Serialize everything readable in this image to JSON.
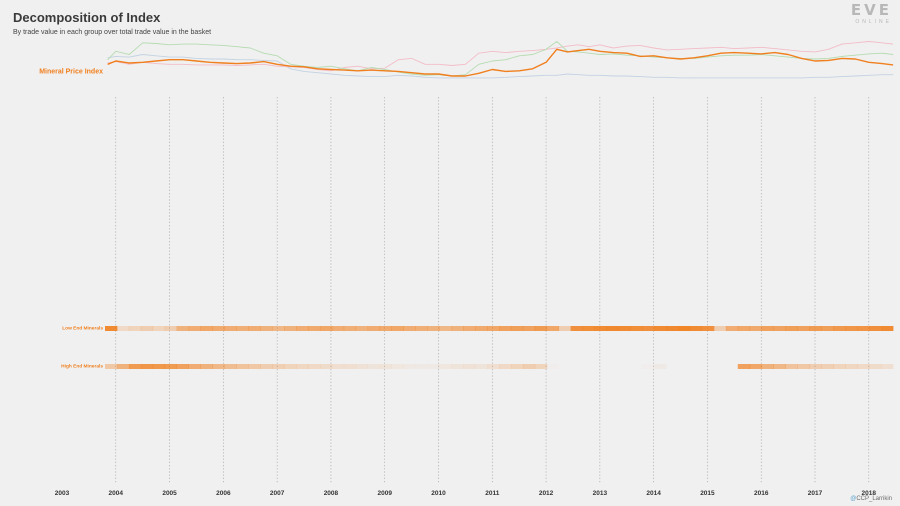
{
  "header": {
    "title": "Decomposition of Index",
    "subtitle": "By trade value in each group over total trade value in the basket"
  },
  "logo": {
    "mark": "EVE",
    "sub": "ONLINE"
  },
  "credit": {
    "prefix": "@",
    "handle": "CCP_Larrikin"
  },
  "colors": {
    "background": "#f0f0f0",
    "index_line": "#f07f1e",
    "heat": "#f07f1e",
    "green_series": "#b5dbb0",
    "pink_series": "#f3bcc8",
    "blue_series": "#c3d2e3",
    "grid": "#9a9a9a"
  },
  "chart_data": {
    "type": "line",
    "title": "Decomposition of Index",
    "subtitle": "By trade value in each group over total trade value in the basket",
    "x_ticks": [
      "2003",
      "2004",
      "2005",
      "2006",
      "2007",
      "2008",
      "2009",
      "2010",
      "2011",
      "2012",
      "2013",
      "2014",
      "2015",
      "2016",
      "2017",
      "2018"
    ],
    "x_domain": [
      2003.0,
      2018.45
    ],
    "y_domain": [
      0,
      100
    ],
    "x": [
      2003.85,
      2004.0,
      2004.25,
      2004.5,
      2004.75,
      2005.0,
      2005.25,
      2005.5,
      2005.75,
      2006.0,
      2006.25,
      2006.5,
      2006.75,
      2007.0,
      2007.25,
      2007.5,
      2007.75,
      2008.0,
      2008.25,
      2008.5,
      2008.75,
      2009.0,
      2009.25,
      2009.5,
      2009.75,
      2010.0,
      2010.25,
      2010.5,
      2010.75,
      2011.0,
      2011.25,
      2011.5,
      2011.75,
      2012.0,
      2012.2,
      2012.4,
      2012.6,
      2012.8,
      2013.0,
      2013.25,
      2013.5,
      2013.75,
      2014.0,
      2014.25,
      2014.5,
      2014.75,
      2015.0,
      2015.25,
      2015.5,
      2015.75,
      2016.0,
      2016.25,
      2016.5,
      2016.75,
      2017.0,
      2017.25,
      2017.5,
      2017.75,
      2018.0,
      2018.25,
      2018.45
    ],
    "series": [
      {
        "name": "Mineral Price Index",
        "role": "index",
        "values": [
          55,
          60,
          57,
          58,
          60,
          62,
          62,
          60,
          58,
          57,
          56,
          57,
          59,
          55,
          52,
          51,
          48,
          47,
          46,
          45,
          46,
          45,
          44,
          42,
          40,
          40,
          37,
          37,
          41,
          47,
          44,
          45,
          48,
          58,
          78,
          74,
          76,
          78,
          75,
          73,
          72,
          67,
          68,
          65,
          63,
          65,
          68,
          72,
          73,
          72,
          71,
          73,
          70,
          64,
          60,
          61,
          64,
          63,
          58,
          56,
          54
        ]
      },
      {
        "role": "group",
        "values": [
          62,
          75,
          70,
          88,
          87,
          85,
          86,
          86,
          85,
          84,
          82,
          80,
          72,
          68,
          55,
          52,
          50,
          52,
          48,
          45,
          50,
          47,
          43,
          40,
          38,
          39,
          37,
          39,
          55,
          60,
          62,
          68,
          70,
          78,
          90,
          75,
          74,
          72,
          70,
          71,
          69,
          68,
          66,
          65,
          64,
          64,
          66,
          68,
          69,
          69,
          70,
          68,
          66,
          64,
          63,
          64,
          67,
          69,
          71,
          72,
          70
        ]
      },
      {
        "role": "group",
        "values": [
          57,
          59,
          55,
          58,
          56,
          55,
          55,
          54,
          54,
          54,
          53,
          54,
          55,
          52,
          51,
          50,
          47,
          45,
          50,
          52,
          48,
          49,
          62,
          64,
          55,
          55,
          53,
          55,
          72,
          75,
          73,
          75,
          76,
          78,
          80,
          83,
          85,
          82,
          85,
          80,
          83,
          84,
          80,
          77,
          78,
          79,
          80,
          81,
          79,
          80,
          81,
          79,
          77,
          75,
          74,
          78,
          86,
          88,
          90,
          88,
          86
        ]
      },
      {
        "role": "group",
        "values": [
          65,
          67,
          66,
          70,
          68,
          66,
          66,
          64,
          63,
          63,
          62,
          62,
          61,
          60,
          48,
          44,
          42,
          40,
          38,
          37,
          36,
          36,
          38,
          37,
          35,
          34,
          34,
          34,
          34,
          34,
          35,
          36,
          37,
          38,
          38,
          40,
          39,
          38,
          38,
          37,
          37,
          36,
          35,
          35,
          34,
          34,
          34,
          34,
          34,
          34,
          34,
          34,
          34,
          34,
          35,
          35,
          36,
          37,
          38,
          39,
          39
        ]
      }
    ],
    "heat_rows": [
      {
        "label": "Low End Minerals",
        "highlighted": true,
        "values": [
          0.9,
          0.2,
          0.25,
          0.3,
          0.25,
          0.3,
          0.55,
          0.6,
          0.65,
          0.62,
          0.6,
          0.58,
          0.6,
          0.55,
          0.5,
          0.55,
          0.6,
          0.62,
          0.65,
          0.6,
          0.58,
          0.55,
          0.6,
          0.62,
          0.65,
          0.6,
          0.58,
          0.55,
          0.5,
          0.55,
          0.6,
          0.62,
          0.65,
          0.7,
          0.72,
          0.7,
          0.75,
          0.65,
          0.3,
          0.85,
          0.88,
          0.9,
          0.92,
          0.9,
          0.88,
          0.85,
          0.9,
          0.92,
          0.95,
          0.9,
          0.85,
          0.3,
          0.6,
          0.65,
          0.62,
          0.7,
          0.68,
          0.72,
          0.7,
          0.75,
          0.72,
          0.78,
          0.8,
          0.82,
          0.85,
          0.9
        ]
      },
      {
        "label": "High End Minerals",
        "highlighted": true,
        "values": [
          0.35,
          0.55,
          0.75,
          0.8,
          0.78,
          0.75,
          0.7,
          0.6,
          0.55,
          0.5,
          0.45,
          0.4,
          0.35,
          0.3,
          0.28,
          0.25,
          0.22,
          0.2,
          0.18,
          0.15,
          0.15,
          0.12,
          0.1,
          0.1,
          0.08,
          0.06,
          0.05,
          0.05,
          0.08,
          0.1,
          0.12,
          0.1,
          0.15,
          0.2,
          0.25,
          0.3,
          0.25,
          0.02,
          0.0,
          0.0,
          0.0,
          0.0,
          0.0,
          0.0,
          0.0,
          0.02,
          0.05,
          0.0,
          0.0,
          0.0,
          0.0,
          0.0,
          0.0,
          0.7,
          0.65,
          0.55,
          0.5,
          0.4,
          0.35,
          0.3,
          0.28,
          0.25,
          0.22,
          0.2,
          0.18,
          0.15
        ]
      }
    ]
  }
}
